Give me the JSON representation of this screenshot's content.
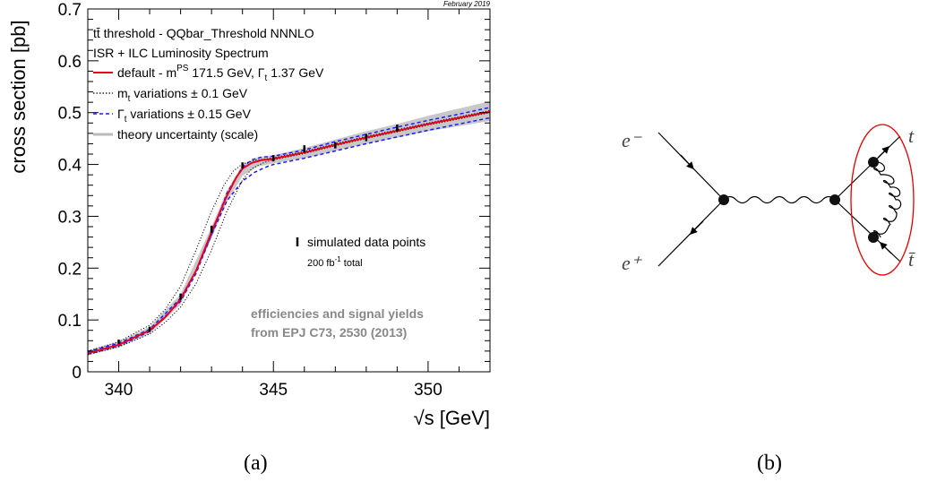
{
  "panel_a": {
    "stamp": "February 2019",
    "caption": "(a)",
    "legend": {
      "title_line1": "tt̄ threshold - QQbar_Threshold NNNLO",
      "title_line2": "ISR + ILC Luminosity Spectrum",
      "entries": [
        {
          "key": "default",
          "text": "default - m",
          "sup": "PS",
          "tail": " 171.5 GeV, Γ",
          "sub": "t",
          "tail2": " 1.37 GeV",
          "color": "#e8001c",
          "style": "solid"
        },
        {
          "key": "mt",
          "text": "m",
          "sub": "t",
          "tail": " variations ± 0.1 GeV",
          "color": "#000000",
          "style": "dotted"
        },
        {
          "key": "gamma",
          "text": "Γ",
          "sub": "t",
          "tail": " variations ± 0.15 GeV",
          "color": "#1a1aff",
          "style": "dashed"
        },
        {
          "key": "theory",
          "text": "theory uncertainty (scale)",
          "color": "#bbbbbb",
          "style": "band"
        }
      ],
      "data_label": "simulated data points",
      "lumi": "200 fb",
      "lumi_sup": "-1",
      "lumi_tail": " total"
    },
    "note_line1": "efficiencies and signal yields",
    "note_line2": "from EPJ C73, 2530 (2013)"
  },
  "panel_b": {
    "caption": "(b)",
    "labels": {
      "e_minus": "e⁻",
      "e_plus": "e⁺",
      "top": "t",
      "antitop": "t̄"
    }
  },
  "chart_data": {
    "type": "line",
    "xlabel": "√s [GeV]",
    "ylabel": "cross section [pb]",
    "xlim": [
      339,
      352
    ],
    "ylim": [
      0,
      0.7
    ],
    "xticks": [
      340,
      345,
      350
    ],
    "yticks": [
      0,
      0.1,
      0.2,
      0.3,
      0.4,
      0.5,
      0.6,
      0.7
    ],
    "tick_labels_y": [
      "0",
      "0.1",
      "0.2",
      "0.3",
      "0.4",
      "0.5",
      "0.6",
      "0.7"
    ],
    "tick_labels_x": [
      "340",
      "345",
      "350"
    ],
    "grid": false,
    "legend_position": "top-left",
    "series": [
      {
        "name": "default",
        "x": [
          339,
          340,
          341,
          341.5,
          342,
          342.5,
          343,
          343.5,
          343.8,
          344,
          344.3,
          344.6,
          345,
          346,
          347,
          348,
          349,
          350,
          351,
          352
        ],
        "y": [
          0.036,
          0.052,
          0.08,
          0.105,
          0.14,
          0.195,
          0.27,
          0.34,
          0.375,
          0.392,
          0.403,
          0.408,
          0.411,
          0.423,
          0.438,
          0.452,
          0.465,
          0.478,
          0.49,
          0.502
        ]
      },
      {
        "name": "mt_minus",
        "x": [
          339,
          340,
          341,
          341.5,
          342,
          342.5,
          343,
          343.4,
          343.7,
          344,
          344.4,
          345,
          346,
          347,
          348,
          349,
          350,
          351,
          352
        ],
        "y": [
          0.04,
          0.058,
          0.09,
          0.12,
          0.165,
          0.235,
          0.31,
          0.36,
          0.387,
          0.401,
          0.408,
          0.413,
          0.425,
          0.44,
          0.454,
          0.467,
          0.48,
          0.492,
          0.504
        ]
      },
      {
        "name": "mt_plus",
        "x": [
          339,
          340,
          341,
          341.5,
          342,
          342.5,
          343,
          343.5,
          344,
          344.3,
          344.7,
          345,
          346,
          347,
          348,
          349,
          350,
          351,
          352
        ],
        "y": [
          0.033,
          0.048,
          0.073,
          0.095,
          0.125,
          0.17,
          0.235,
          0.31,
          0.37,
          0.392,
          0.404,
          0.409,
          0.421,
          0.436,
          0.45,
          0.463,
          0.476,
          0.488,
          0.5
        ]
      },
      {
        "name": "gamma_minus",
        "x": [
          339,
          340,
          341,
          342,
          342.5,
          343,
          343.5,
          344,
          344.3,
          344.6,
          345,
          346,
          347,
          348,
          349,
          350,
          351,
          352
        ],
        "y": [
          0.034,
          0.05,
          0.078,
          0.136,
          0.19,
          0.265,
          0.345,
          0.395,
          0.409,
          0.414,
          0.416,
          0.428,
          0.444,
          0.458,
          0.472,
          0.485,
          0.497,
          0.51
        ]
      },
      {
        "name": "gamma_plus",
        "x": [
          339,
          340,
          341,
          342,
          342.5,
          343,
          343.5,
          344,
          344.4,
          344.8,
          345,
          346,
          347,
          348,
          349,
          350,
          351,
          352
        ],
        "y": [
          0.039,
          0.055,
          0.082,
          0.142,
          0.195,
          0.265,
          0.33,
          0.368,
          0.385,
          0.396,
          0.4,
          0.412,
          0.426,
          0.44,
          0.453,
          0.466,
          0.478,
          0.49
        ]
      },
      {
        "name": "theory_upper",
        "x": [
          339,
          340,
          341,
          342,
          343,
          343.5,
          344,
          344.5,
          345,
          346,
          347,
          348,
          349,
          350,
          351,
          352
        ],
        "y": [
          0.041,
          0.058,
          0.087,
          0.15,
          0.28,
          0.35,
          0.4,
          0.414,
          0.418,
          0.432,
          0.448,
          0.464,
          0.478,
          0.494,
          0.508,
          0.522
        ]
      },
      {
        "name": "theory_lower",
        "x": [
          339,
          340,
          341,
          342,
          343,
          343.5,
          344,
          344.5,
          345,
          346,
          347,
          348,
          349,
          350,
          351,
          352
        ],
        "y": [
          0.032,
          0.047,
          0.073,
          0.13,
          0.258,
          0.328,
          0.378,
          0.396,
          0.402,
          0.412,
          0.426,
          0.44,
          0.452,
          0.464,
          0.474,
          0.484
        ]
      }
    ],
    "data_points": {
      "x": [
        340,
        341,
        342,
        343,
        344,
        345,
        346,
        347,
        348,
        349
      ],
      "y": [
        0.058,
        0.082,
        0.145,
        0.275,
        0.398,
        0.412,
        0.43,
        0.437,
        0.452,
        0.47
      ],
      "err": [
        0.004,
        0.005,
        0.006,
        0.007,
        0.006,
        0.006,
        0.007,
        0.006,
        0.007,
        0.007
      ]
    }
  }
}
